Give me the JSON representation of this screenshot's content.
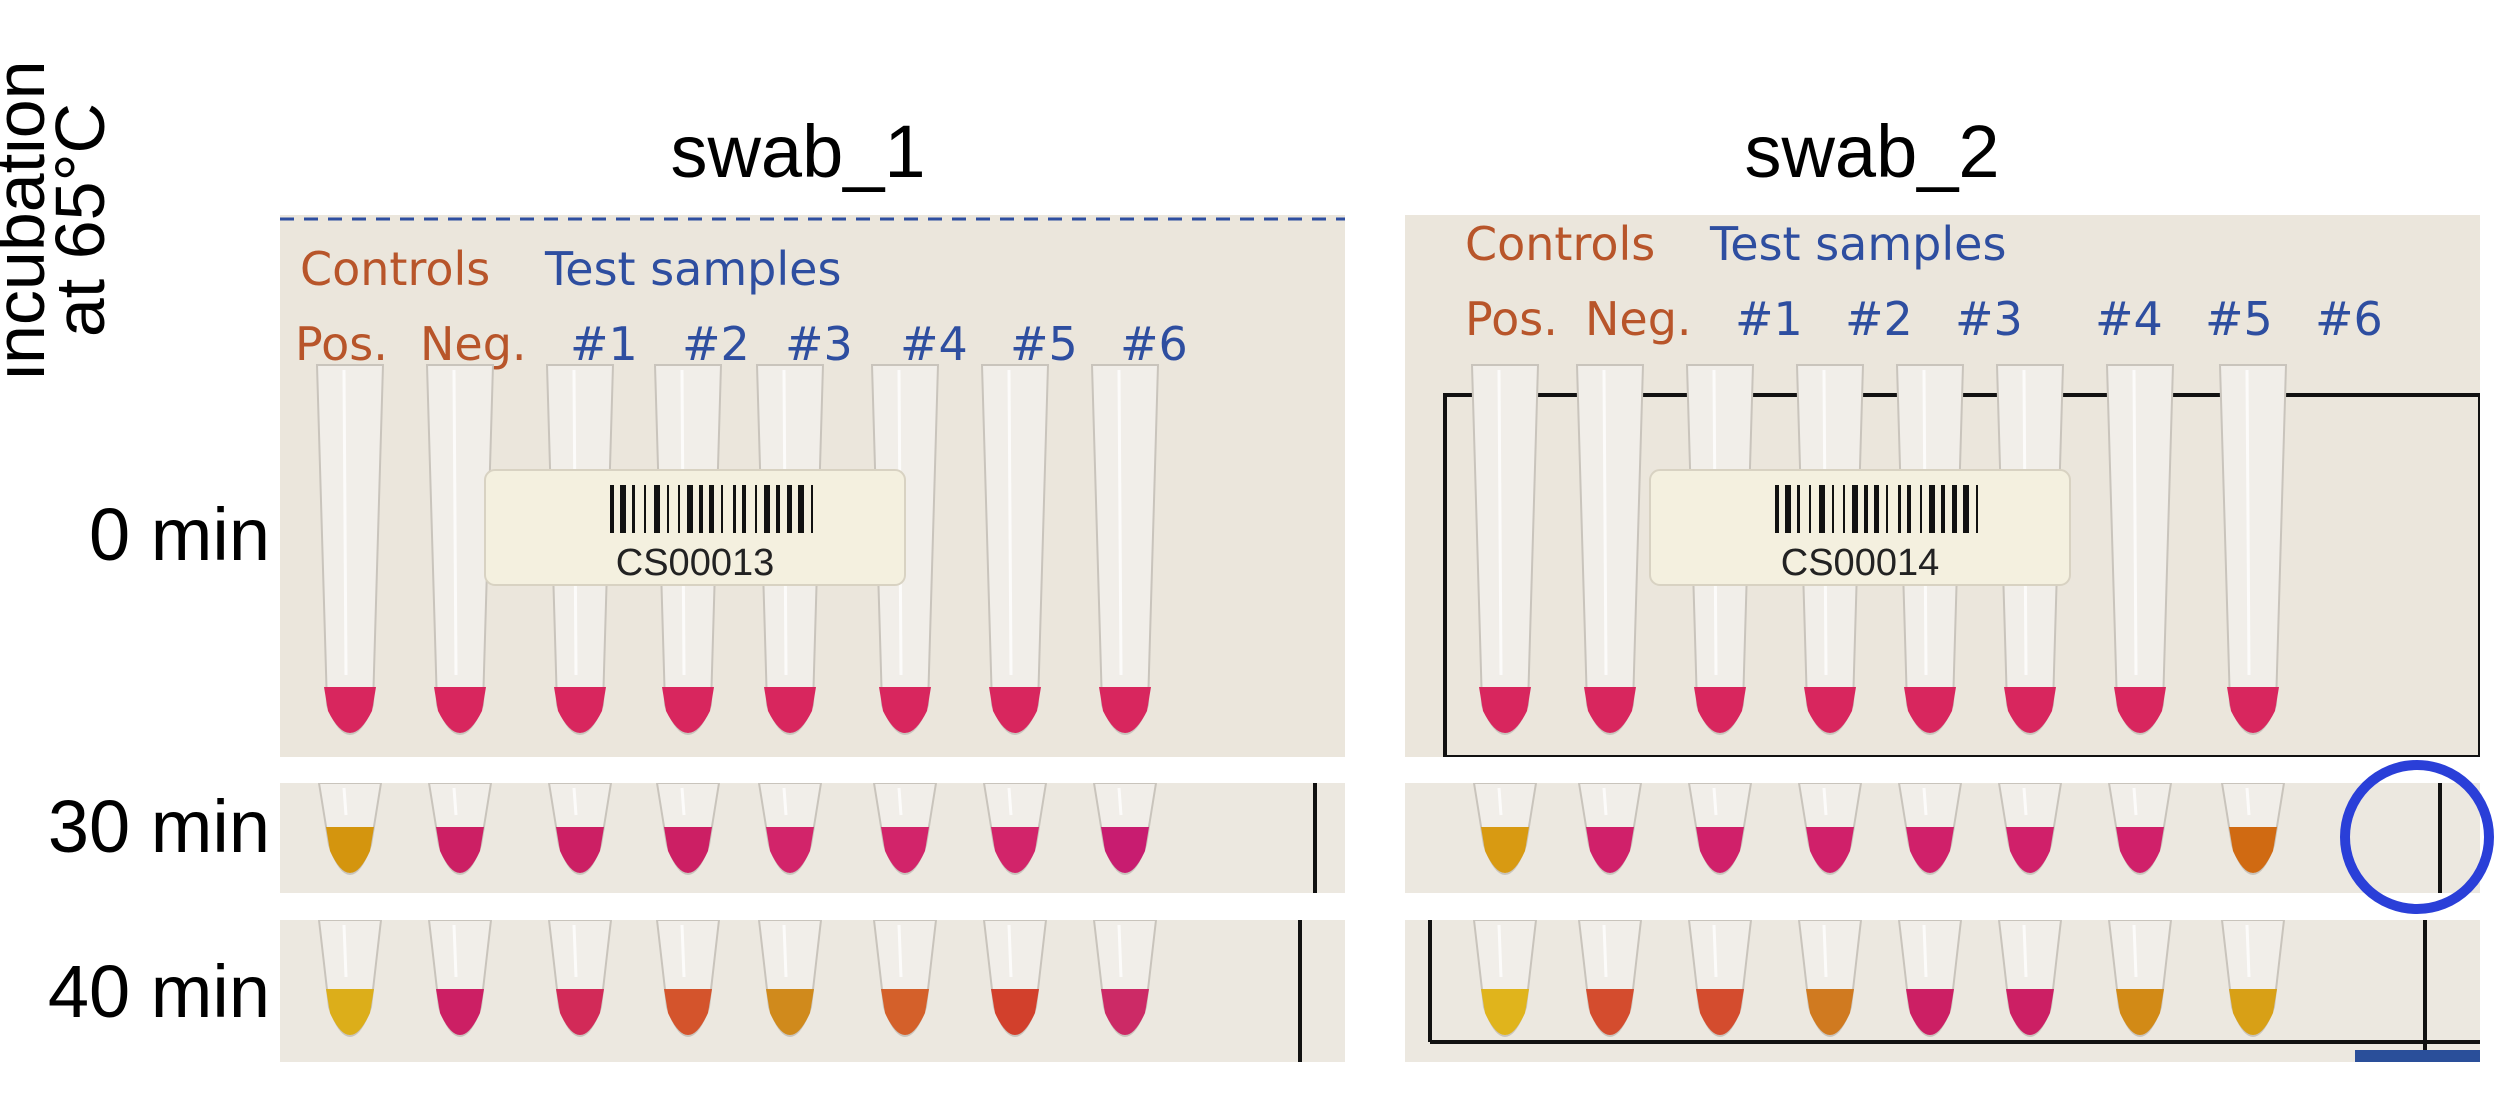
{
  "axis_label": {
    "line1": "incubation",
    "line2": "at 65°C"
  },
  "columns": [
    {
      "title": "swab_1",
      "barcode": "CS00013"
    },
    {
      "title": "swab_2",
      "barcode": "CS00014"
    }
  ],
  "panel_labels": {
    "controls": "Controls",
    "test_samples": "Test samples",
    "tubes": [
      "Pos.",
      "Neg.",
      "#1",
      "#2",
      "#3",
      "#4",
      "#5",
      "#6"
    ]
  },
  "time_points": [
    "0 min",
    "30 min",
    "40 min"
  ],
  "tube_colors": {
    "swab_1": {
      "0 min": [
        "#d8265e",
        "#d8265e",
        "#d8265e",
        "#d8265e",
        "#d8265e",
        "#d8265e",
        "#d8265e",
        "#d8265e"
      ],
      "30 min": [
        "#d4950e",
        "#cc1f64",
        "#cc1f64",
        "#cc1f64",
        "#d2246a",
        "#d2246a",
        "#d2246a",
        "#c81c70"
      ],
      "40 min": [
        "#dcae1a",
        "#cc1f64",
        "#d22a58",
        "#d4542c",
        "#d08a1c",
        "#d4602a",
        "#d2402c",
        "#cc2a66"
      ]
    },
    "swab_2": {
      "0 min": [
        "#d8265e",
        "#d8265e",
        "#d8265e",
        "#d8265e",
        "#d8265e",
        "#d8265e",
        "#d8265e",
        "#d8265e"
      ],
      "30 min": [
        "#d89a12",
        "#d0206a",
        "#d0206a",
        "#d0206a",
        "#d0206a",
        "#d0206a",
        "#d0206a",
        "#d06a12"
      ],
      "40 min": [
        "#e0b41c",
        "#d44c2e",
        "#d44c2e",
        "#d07a20",
        "#cc1f64",
        "#cc1f64",
        "#d28a16",
        "#d8a016"
      ]
    }
  },
  "highlight": {
    "panel": "swab_2",
    "time": "30 min",
    "tube": "#6",
    "color": "#2a3fd8"
  }
}
